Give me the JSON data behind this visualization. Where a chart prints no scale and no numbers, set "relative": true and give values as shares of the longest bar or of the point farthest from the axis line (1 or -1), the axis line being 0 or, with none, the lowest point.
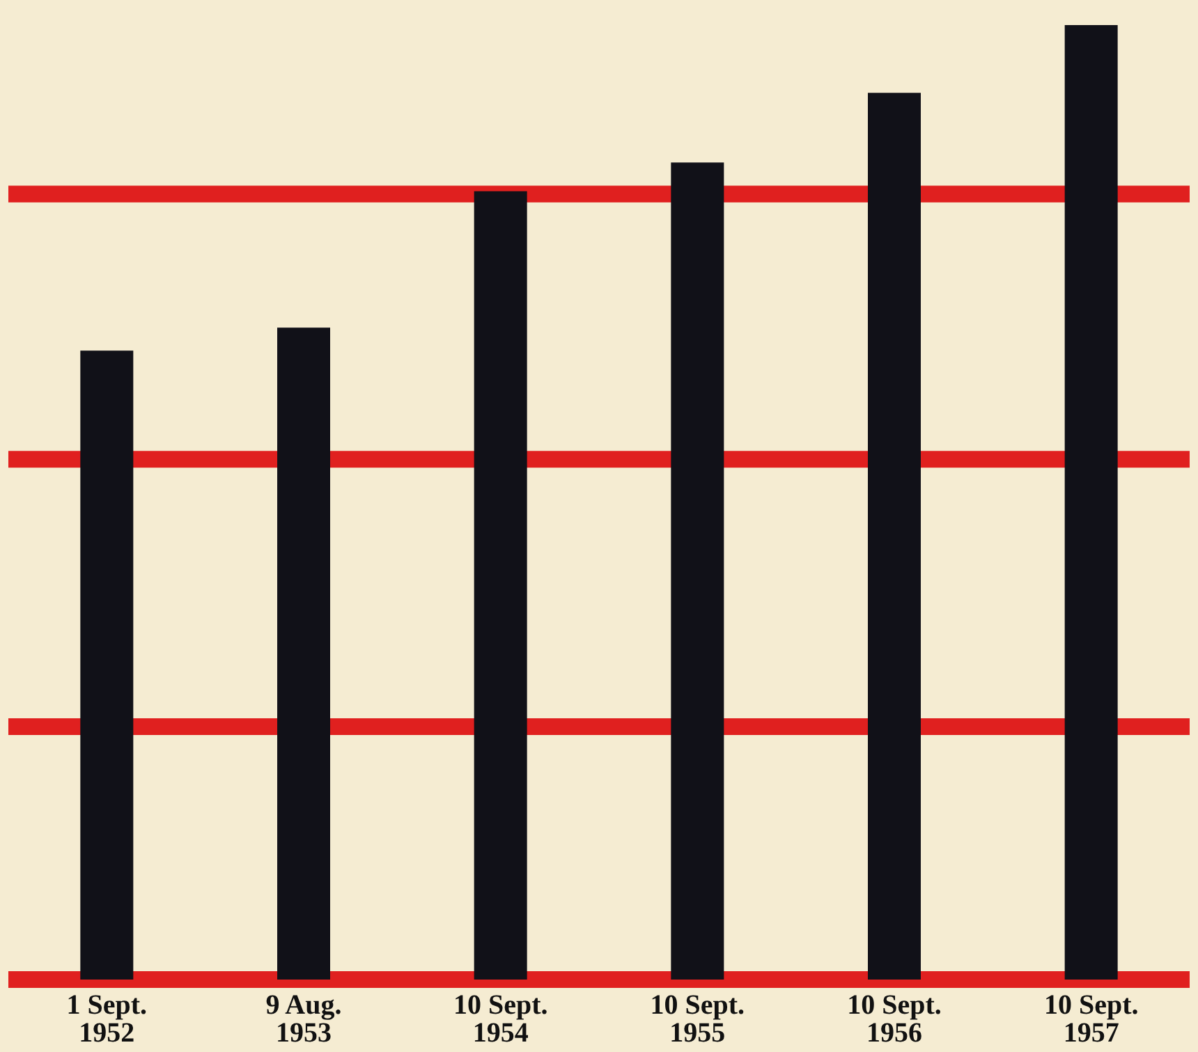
{
  "chart_data": {
    "type": "bar",
    "relative": true,
    "categories": [
      "1 Sept.\n1952",
      "9 Aug.\n1953",
      "10 Sept.\n1954",
      "10 Sept.\n1955",
      "10 Sept.\n1956",
      "10 Sept.\n1957"
    ],
    "values": [
      0.659,
      0.683,
      0.826,
      0.856,
      0.929,
      1
    ],
    "color": "#111118",
    "ref_lines": [
      {
        "axis": "y",
        "value": 0.265,
        "color": "#e0201f"
      },
      {
        "axis": "y",
        "value": 0.545,
        "color": "#e0201f"
      },
      {
        "axis": "y",
        "value": 0.823,
        "color": "#e0201f"
      }
    ]
  }
}
